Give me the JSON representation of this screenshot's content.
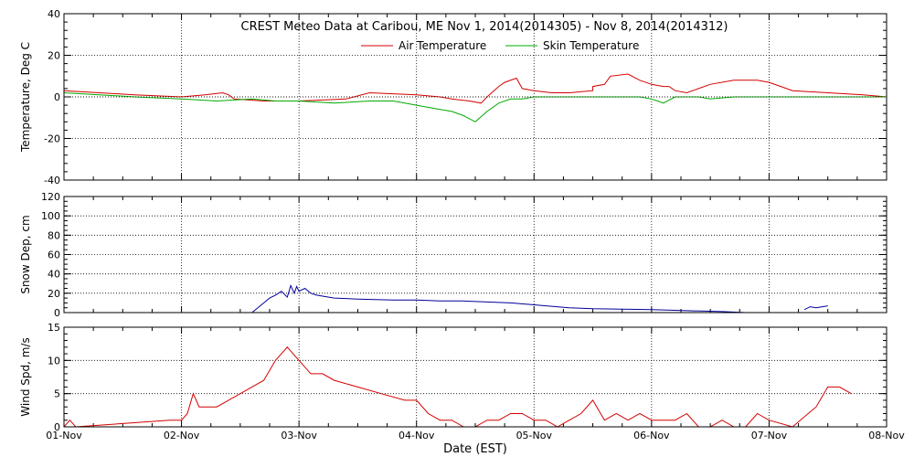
{
  "title": "CREST Meteo Data at Caribou, ME   Nov  1, 2014(2014305) - Nov  8, 2014(2014312)",
  "xlabel": "Date (EST)",
  "x_ticks": [
    "01-Nov",
    "02-Nov",
    "03-Nov",
    "04-Nov",
    "05-Nov",
    "06-Nov",
    "07-Nov",
    "08-Nov"
  ],
  "colors": {
    "air": "#d40000",
    "skin": "#00aa00",
    "snow": "#000099",
    "wind": "#d40000",
    "axis": "#000000"
  },
  "chart_data": [
    {
      "type": "line",
      "ylabel": "Temperature, Deg C",
      "ylim": [
        -40,
        40
      ],
      "yticks": [
        -40,
        -20,
        0,
        20,
        40
      ],
      "xlim": [
        0,
        7
      ],
      "grid": true,
      "legend": "top-center",
      "series": [
        {
          "name": "Air Temperature",
          "color": "#d40000",
          "x": [
            0,
            0.3,
            0.6,
            1.0,
            1.2,
            1.35,
            1.4,
            1.45,
            1.7,
            2.0,
            2.4,
            2.6,
            3.0,
            3.2,
            3.3,
            3.45,
            3.55,
            3.6,
            3.7,
            3.75,
            3.85,
            3.9,
            4.0,
            4.15,
            4.3,
            4.5,
            4.5,
            4.6,
            4.65,
            4.8,
            4.9,
            5.0,
            5.1,
            5.15,
            5.2,
            5.3,
            5.5,
            5.7,
            5.9,
            6.0,
            6.1,
            6.2,
            6.5,
            6.8,
            7.0
          ],
          "y": [
            3,
            2,
            1,
            0,
            1,
            2,
            1,
            -1,
            -2,
            -2,
            -1,
            2,
            1,
            0,
            -1,
            -2,
            -3,
            0,
            5,
            7,
            9,
            4,
            3,
            2,
            2,
            3,
            5,
            6,
            10,
            11,
            8,
            6,
            5,
            5,
            3,
            2,
            6,
            8,
            8,
            7,
            5,
            3,
            2,
            1,
            0
          ]
        },
        {
          "name": "Skin Temperature",
          "color": "#00aa00",
          "x": [
            0,
            0.3,
            0.6,
            1.0,
            1.3,
            1.6,
            1.8,
            2.0,
            2.3,
            2.6,
            2.8,
            2.9,
            3.0,
            3.2,
            3.3,
            3.4,
            3.5,
            3.6,
            3.7,
            3.8,
            3.9,
            4.0,
            4.5,
            4.9,
            5.0,
            5.05,
            5.1,
            5.2,
            5.4,
            5.5,
            5.7,
            5.9,
            6.0,
            6.1,
            6.5,
            7.0
          ],
          "y": [
            2,
            1,
            0,
            -1,
            -2,
            -1,
            -2,
            -2,
            -3,
            -2,
            -2,
            -3,
            -4,
            -6,
            -7,
            -9,
            -12,
            -7,
            -3,
            -1,
            -1,
            0,
            0,
            0,
            -1,
            -2,
            -3,
            0,
            0,
            -1,
            0,
            0,
            0,
            0,
            0,
            0
          ]
        }
      ]
    },
    {
      "type": "line",
      "ylabel": "Snow Dep, cm",
      "ylim": [
        0,
        120
      ],
      "yticks": [
        0,
        20,
        40,
        60,
        80,
        100,
        120
      ],
      "xlim": [
        0,
        7
      ],
      "grid": true,
      "series": [
        {
          "name": "",
          "color": "#000099",
          "x": [
            1.6,
            1.65,
            1.7,
            1.75,
            1.8,
            1.85,
            1.9,
            1.93,
            1.96,
            1.98,
            2.0,
            2.05,
            2.1,
            2.15,
            2.2,
            2.3,
            2.5,
            2.8,
            3.0,
            3.2,
            3.4,
            3.6,
            3.8,
            4.0,
            4.3,
            4.5,
            5.0,
            5.3,
            5.6,
            5.8,
            5.9,
            6.0,
            6.1,
            6.25,
            6.3,
            6.35,
            6.4,
            6.5
          ],
          "y": [
            0,
            5,
            10,
            15,
            18,
            22,
            16,
            28,
            20,
            27,
            22,
            25,
            20,
            18,
            17,
            15,
            14,
            13,
            13,
            12,
            12,
            11,
            10,
            8,
            5,
            4,
            3,
            2,
            1,
            0,
            0,
            null,
            null,
            null,
            3,
            6,
            5,
            7
          ]
        }
      ]
    },
    {
      "type": "line",
      "ylabel": "Wind Spd, m/s",
      "ylim": [
        0,
        15
      ],
      "yticks": [
        0,
        5,
        10,
        15
      ],
      "xlim": [
        0,
        7
      ],
      "grid": true,
      "series": [
        {
          "name": "",
          "color": "#d40000",
          "x": [
            0,
            0.05,
            0.1,
            0.5,
            0.9,
            1.0,
            1.05,
            1.1,
            1.15,
            1.2,
            1.3,
            1.4,
            1.5,
            1.6,
            1.7,
            1.8,
            1.9,
            2.0,
            2.1,
            2.2,
            2.3,
            2.5,
            2.7,
            2.9,
            3.0,
            3.1,
            3.2,
            3.3,
            3.4,
            3.5,
            3.6,
            3.7,
            3.8,
            3.9,
            4.0,
            4.1,
            4.2,
            4.3,
            4.4,
            4.5,
            4.6,
            4.7,
            4.8,
            4.9,
            5.0,
            5.1,
            5.2,
            5.3,
            5.4,
            5.5,
            5.6,
            5.7,
            5.8,
            5.9,
            6.0,
            6.2,
            6.4,
            6.5,
            6.6,
            6.7
          ],
          "y": [
            0,
            1,
            0,
            0.5,
            1,
            1,
            2,
            5,
            3,
            3,
            3,
            4,
            5,
            6,
            7,
            10,
            12,
            10,
            8,
            8,
            7,
            6,
            5,
            4,
            4,
            2,
            1,
            1,
            0,
            0,
            1,
            1,
            2,
            2,
            1,
            1,
            0,
            1,
            2,
            4,
            1,
            2,
            1,
            2,
            1,
            1,
            1,
            2,
            0,
            0,
            1,
            0,
            0,
            2,
            1,
            0,
            3,
            6,
            6,
            5
          ]
        }
      ]
    }
  ]
}
